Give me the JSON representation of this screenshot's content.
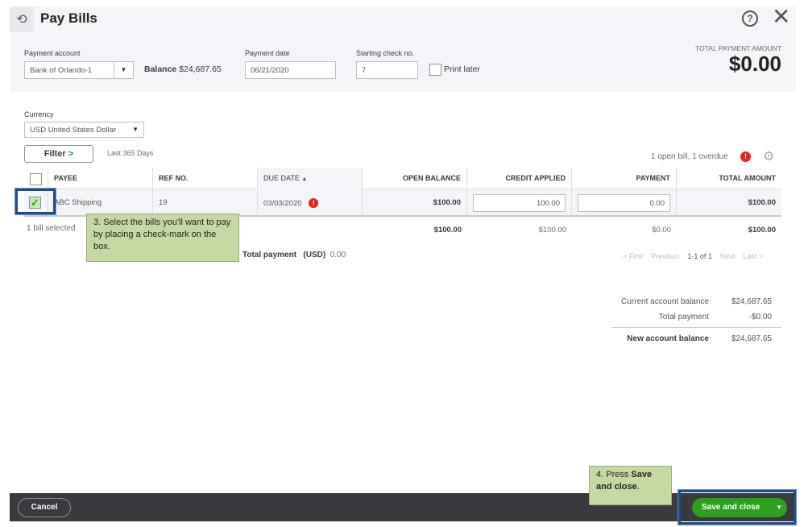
{
  "header": {
    "title": "Pay Bills",
    "icon": "pay-bills-clock-icon",
    "help_icon": "help-icon",
    "close_icon": "close-icon"
  },
  "form": {
    "payment_account_label": "Payment account",
    "payment_account_value": "Bank of Orlando-1",
    "balance_label": "Balance",
    "balance_value": "$24,687.65",
    "payment_date_label": "Payment date",
    "payment_date_value": "06/21/2020",
    "check_no_label": "Starting check no.",
    "check_no_value": "7",
    "print_later_label": "Print later",
    "print_later_checked": false,
    "total_payment_label": "TOTAL PAYMENT AMOUNT",
    "total_payment_value": "$0.00",
    "currency_label": "Currency",
    "currency_value": "USD United States Dollar"
  },
  "filter": {
    "label": "Filter",
    "range": "Last 365 Days",
    "summary": "1 open bill, 1 overdue"
  },
  "table": {
    "columns": [
      "PAYEE",
      "REF NO.",
      "DUE DATE",
      "OPEN BALANCE",
      "CREDIT APPLIED",
      "PAYMENT",
      "TOTAL AMOUNT"
    ],
    "rows": [
      {
        "checked": true,
        "payee": "ABC Shipping",
        "ref": "19",
        "due": "03/03/2020",
        "overdue": true,
        "open_balance": "$100.00",
        "credit_applied": "100.00",
        "payment": "0.00",
        "total": "$100.00"
      }
    ],
    "totals": {
      "selected": "1 bill selected",
      "open_balance": "$100.00",
      "credit_applied": "$100.00",
      "payment": "$0.00",
      "total": "$100.00"
    },
    "total_payment_label": "Total payment",
    "total_payment_currency": "(USD)",
    "total_payment_value": "0.00"
  },
  "pagination": {
    "first": "< First",
    "previous": "Previous",
    "range": "1-1 of 1",
    "next": "Next",
    "last": "Last >"
  },
  "summary": {
    "current_label": "Current account balance",
    "current_value": "$24,687.65",
    "total_label": "Total payment",
    "total_value": "-$0.00",
    "new_label": "New account balance",
    "new_value": "$24,687.65"
  },
  "annotations": {
    "step3": "3. Select the bills you'll want to pay by placing a check-mark on the box.",
    "step4_prefix": "4. Press ",
    "step4_bold1": "Save",
    "step4_bold2": "and close",
    "step4_suffix": "."
  },
  "footer": {
    "cancel": "Cancel",
    "save": "Save and close"
  },
  "colors": {
    "accent_green": "#2ca01c",
    "overdue_red": "#e2231a",
    "highlight_blue": "#1f4e8c",
    "note_green": "#c6d9a0",
    "footer": "#393a3d"
  }
}
